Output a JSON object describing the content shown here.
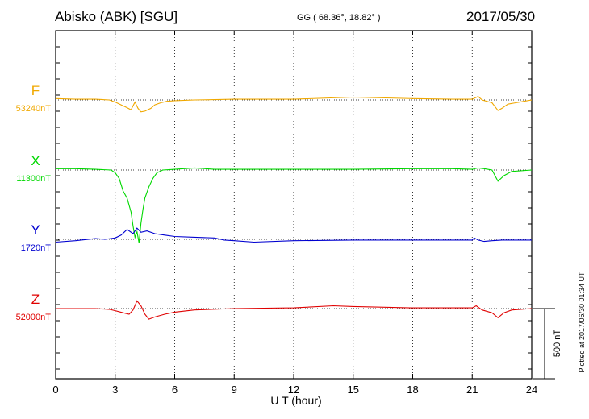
{
  "header": {
    "station": "Abisko (ABK)  [SGU]",
    "coords": "GG ( 68.36°,  18.82° )",
    "date": "2017/05/30"
  },
  "side_note": "Plotted at 2017/06/30 01:34 UT",
  "scale_label": "500 nT",
  "chart_data": {
    "type": "line",
    "title": "Abisko (ABK)  [SGU]",
    "xlabel": "U T (hour)",
    "ylabel": "",
    "xlim": [
      0,
      24
    ],
    "x_ticks": [
      "0",
      "3",
      "6",
      "9",
      "12",
      "15",
      "18",
      "21",
      "24"
    ],
    "grid": "dotted vertical every 3 h",
    "scale_bar_nT": 500,
    "colors": {
      "F": "#f0a800",
      "X": "#00d800",
      "Y": "#0000d0",
      "Z": "#e00000"
    },
    "series": [
      {
        "name": "F",
        "baseline_label": "53240nT",
        "baseline_nT": 53240,
        "x": [
          0,
          1,
          2,
          2.7,
          3,
          3.3,
          3.6,
          3.8,
          4.0,
          4.15,
          4.3,
          4.5,
          4.8,
          5.0,
          5.3,
          5.6,
          6,
          7,
          9,
          12,
          15,
          18,
          20,
          21,
          21.3,
          21.5,
          22,
          22.3,
          22.5,
          22.8,
          23.2,
          23.6,
          24
        ],
        "delta_nT": [
          10,
          5,
          5,
          0,
          -15,
          -35,
          -55,
          -70,
          -15,
          -60,
          -85,
          -80,
          -60,
          -35,
          -20,
          -10,
          -5,
          0,
          5,
          5,
          20,
          10,
          5,
          5,
          25,
          0,
          -20,
          -75,
          -60,
          -30,
          -20,
          -10,
          0
        ]
      },
      {
        "name": "X",
        "baseline_label": "11300nT",
        "baseline_nT": 11300,
        "x": [
          0,
          1,
          2,
          2.8,
          3,
          3.2,
          3.4,
          3.6,
          3.8,
          3.9,
          4.0,
          4.1,
          4.2,
          4.3,
          4.4,
          4.5,
          4.7,
          4.9,
          5.1,
          5.4,
          6,
          7,
          8,
          9,
          10,
          12,
          15,
          18,
          20,
          21,
          21.3,
          21.6,
          22,
          22.3,
          22.6,
          23,
          24
        ],
        "delta_nT": [
          10,
          10,
          5,
          0,
          -20,
          -60,
          -150,
          -200,
          -300,
          -400,
          -480,
          -440,
          -520,
          -380,
          -280,
          -200,
          -120,
          -60,
          -20,
          0,
          5,
          15,
          5,
          5,
          5,
          5,
          5,
          10,
          10,
          5,
          15,
          10,
          0,
          -80,
          -40,
          -10,
          0
        ]
      },
      {
        "name": "Y",
        "baseline_label": "1720nT",
        "baseline_nT": 1720,
        "x": [
          0,
          1,
          2,
          2.5,
          3,
          3.3,
          3.6,
          3.9,
          4.1,
          4.3,
          4.6,
          5.0,
          5.5,
          6,
          7,
          8,
          8.5,
          9,
          10,
          12,
          15,
          18,
          20,
          21,
          21.1,
          21.3,
          21.6,
          22,
          22.5,
          23,
          24
        ],
        "delta_nT": [
          -20,
          -10,
          5,
          0,
          10,
          30,
          70,
          40,
          80,
          50,
          60,
          40,
          30,
          20,
          15,
          10,
          -5,
          -10,
          -20,
          -10,
          -5,
          -5,
          -5,
          -5,
          10,
          -5,
          -15,
          -10,
          -5,
          -5,
          -5
        ]
      },
      {
        "name": "Z",
        "baseline_label": "52000nT",
        "baseline_nT": 52000,
        "x": [
          0,
          1,
          2,
          2.7,
          3,
          3.4,
          3.7,
          3.9,
          4.1,
          4.3,
          4.5,
          4.7,
          5.0,
          5.5,
          6,
          7,
          9,
          12,
          14,
          15,
          18,
          20,
          21,
          21.2,
          21.5,
          22,
          22.3,
          22.6,
          23,
          24
        ],
        "delta_nT": [
          0,
          0,
          0,
          -5,
          -15,
          -30,
          -40,
          -10,
          55,
          20,
          -40,
          -75,
          -60,
          -40,
          -25,
          -10,
          0,
          5,
          20,
          15,
          5,
          5,
          5,
          20,
          -10,
          -30,
          -65,
          -30,
          -10,
          0
        ]
      }
    ]
  }
}
